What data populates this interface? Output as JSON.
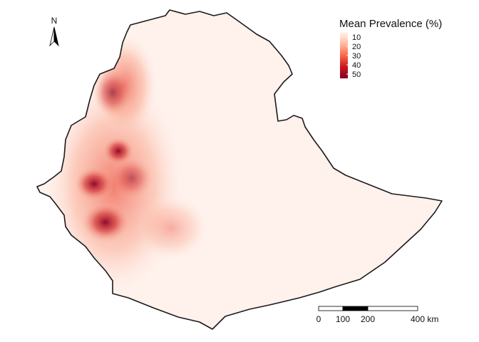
{
  "north_arrow": {
    "label": "N"
  },
  "legend": {
    "title": "Mean Prevalence (%)",
    "ticks": [
      "10",
      "20",
      "30",
      "40",
      "50"
    ],
    "colors": [
      "#fff5f0",
      "#fcbba1",
      "#fb6a4a",
      "#cb181d",
      "#800026"
    ]
  },
  "scale_bar": {
    "labels": [
      "0",
      "100",
      "200",
      "400 km"
    ],
    "bar_color_dark": "#000000",
    "bar_color_light": "#ffffff"
  },
  "map": {
    "border_color": "#1a1a1a",
    "base_fill": "#fff1ec"
  }
}
